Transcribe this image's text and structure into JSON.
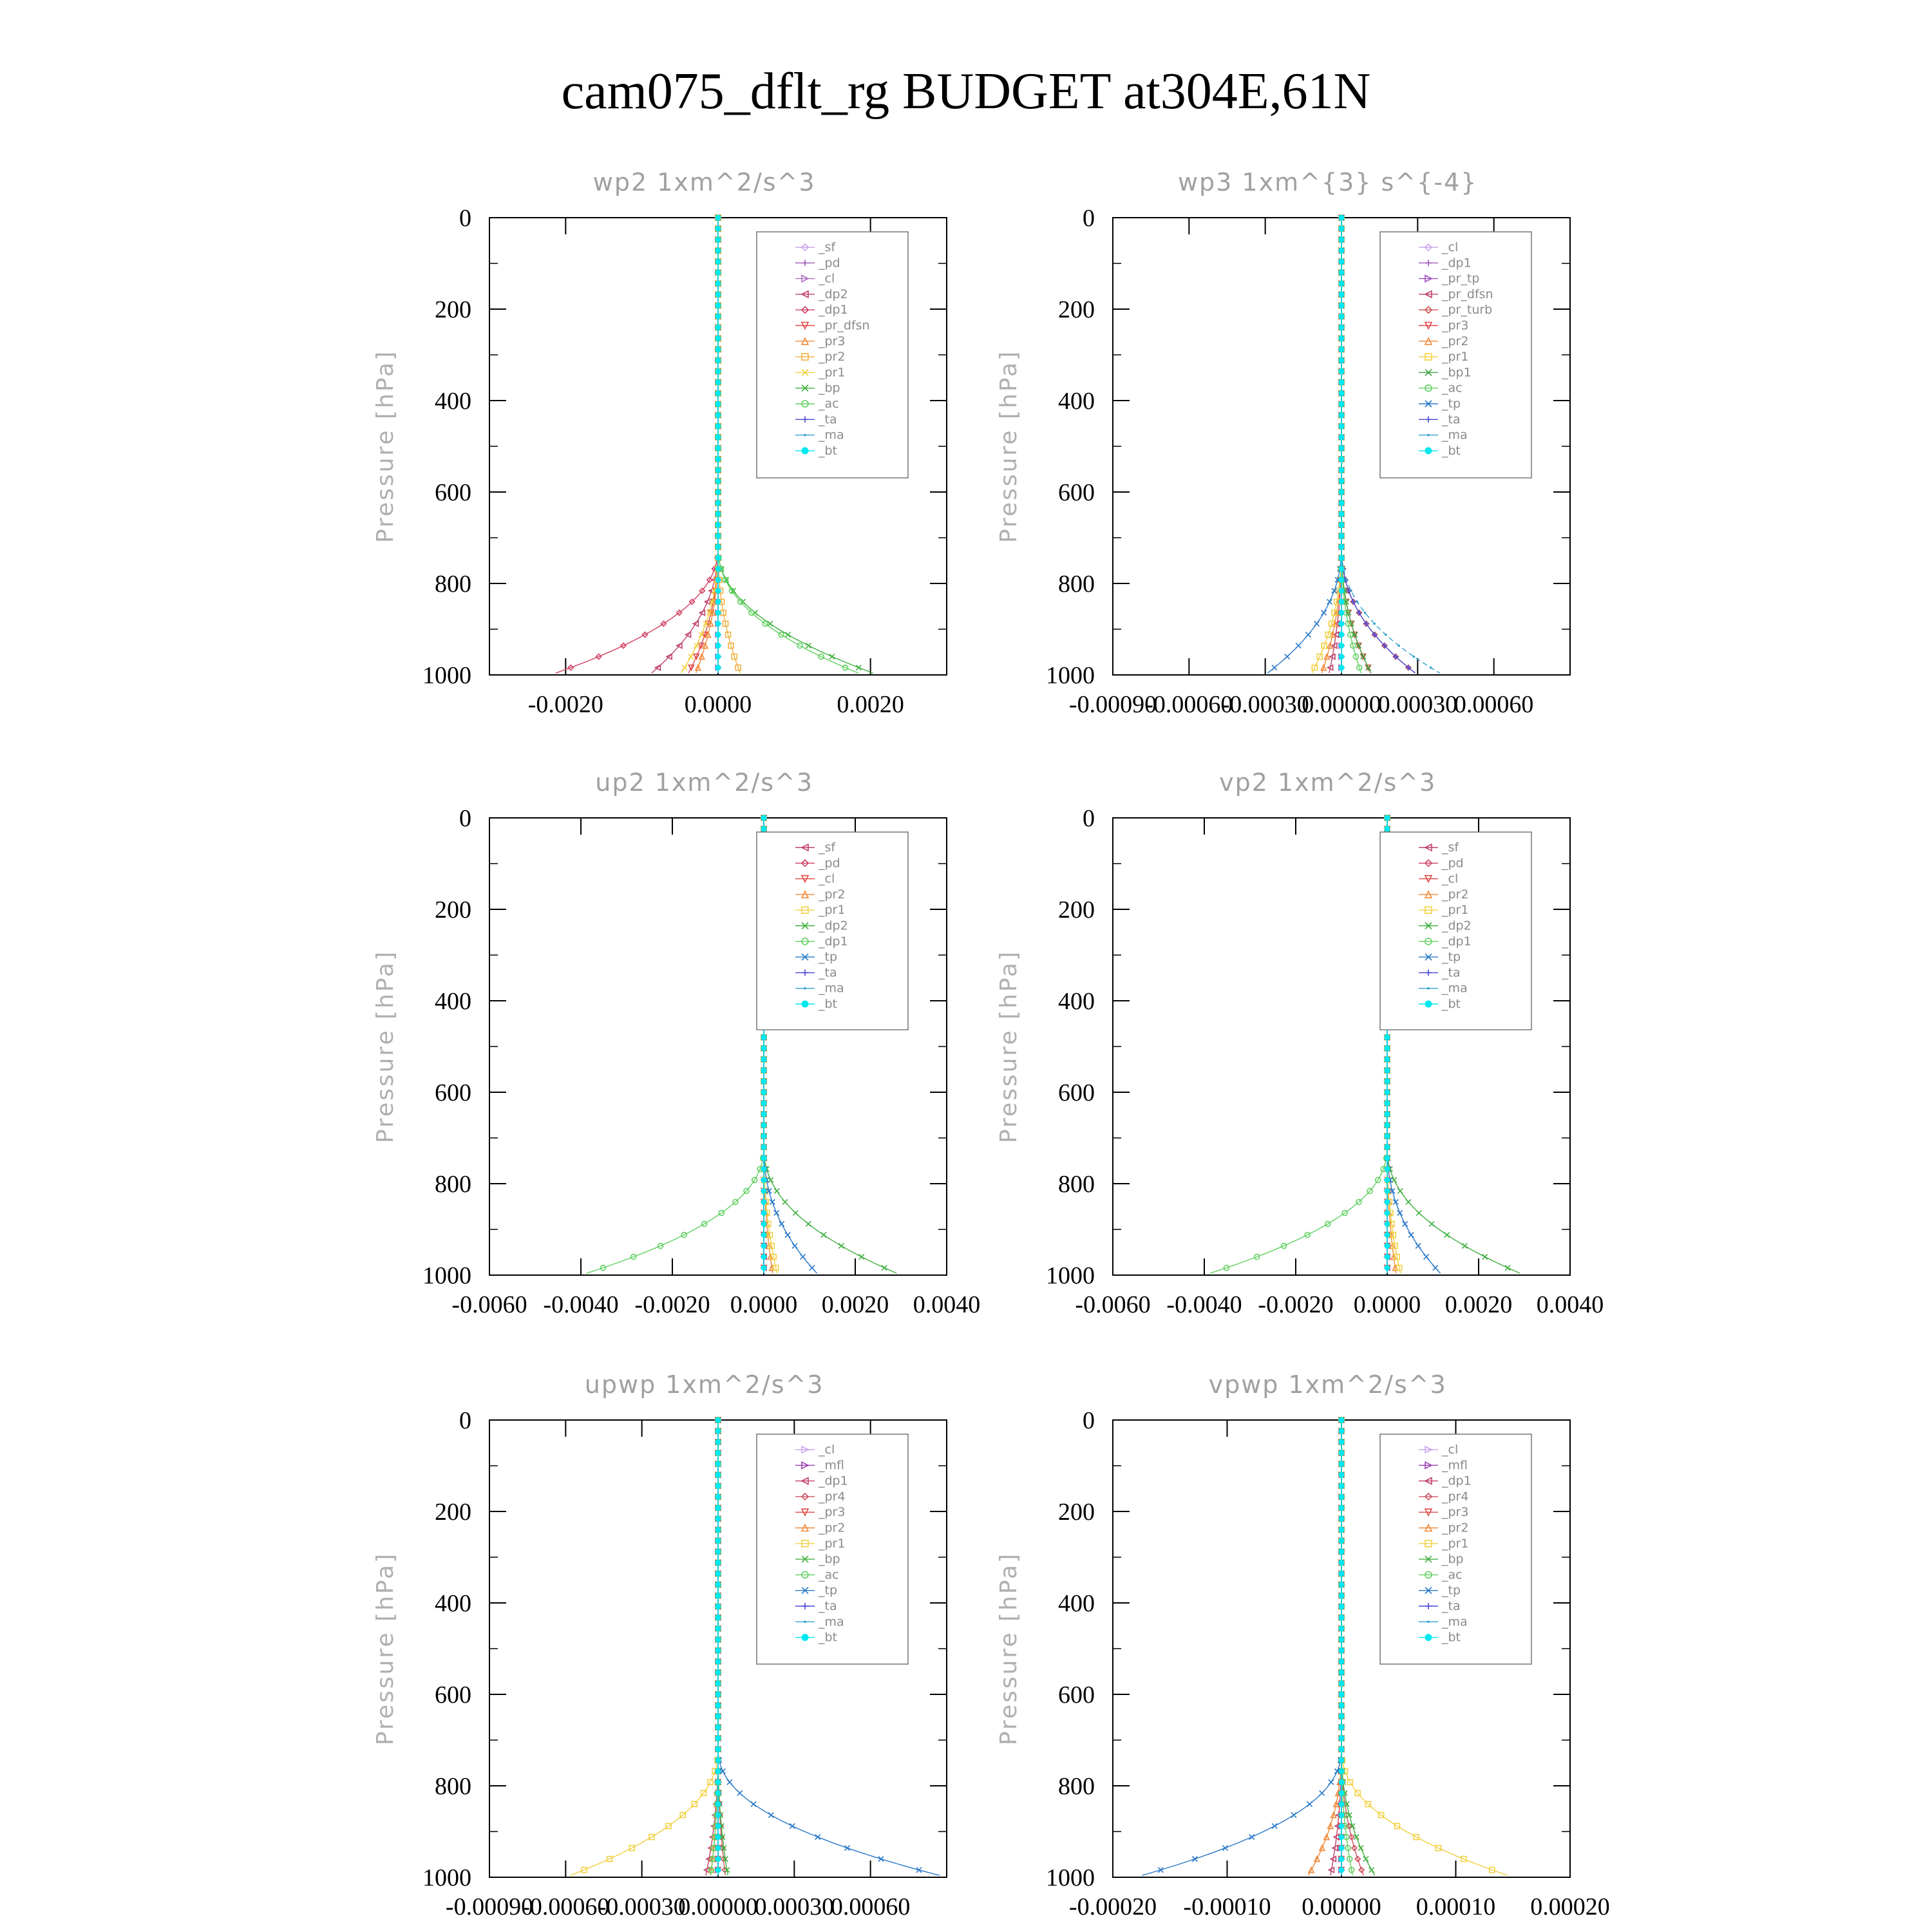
{
  "title": "cam075_dflt_rg  BUDGET at304E,61N",
  "colors": {
    "sf": "#c9a8e8",
    "pd": "#9b59b6",
    "cl": "#b070c0",
    "dp2": "#c0406a",
    "dp1": "#d04060",
    "pr_dfsn": "#e04848",
    "pr3": "#f08a3a",
    "pr2": "#f0b040",
    "pr1": "#f2d040",
    "bp": "#40b040",
    "ac": "#60d060",
    "ta": "#4848d8",
    "ma": "#30a0d0",
    "bt": "#00e8f0",
    "tp": "#2878c8",
    "pr_tp": "#a050c0",
    "pr_turb": "#d05050",
    "bp1": "#40a040",
    "mfl": "#9b40b0",
    "pr4": "#d05060"
  },
  "chart_data": [
    {
      "type": "line",
      "title": "wp2  1xm^2/s^3",
      "ylabel": "Pressure [hPa]",
      "xlim": [
        -0.003,
        0.003
      ],
      "ylim": [
        1000,
        0
      ],
      "xticks": [
        -0.002,
        0.0,
        0.002
      ],
      "xticklabels": [
        "-0.0020",
        "0.0000",
        "0.0020"
      ],
      "yticks": [
        0,
        200,
        400,
        600,
        800,
        1000
      ],
      "legend_loc": "top-right",
      "series": [
        {
          "name": "_sf",
          "key": "sf",
          "marker": "diamond",
          "amp": 0.0
        },
        {
          "name": "_pd",
          "key": "pd",
          "marker": "plus",
          "amp": 0.0
        },
        {
          "name": "_cl",
          "key": "cl",
          "marker": "tri-right",
          "amp": 0.0
        },
        {
          "name": "_dp2",
          "key": "dp2",
          "marker": "tri-left",
          "amp": -0.0009
        },
        {
          "name": "_dp1",
          "key": "dp1",
          "marker": "diamond",
          "amp": -0.0022
        },
        {
          "name": "_pr_dfsn",
          "key": "pr_dfsn",
          "marker": "tri-down",
          "amp": -0.0004
        },
        {
          "name": "_pr3",
          "key": "pr3",
          "marker": "tri-up",
          "amp": -0.0003
        },
        {
          "name": "_pr2",
          "key": "pr2",
          "marker": "square",
          "amp": 0.0003
        },
        {
          "name": "_pr1",
          "key": "pr1",
          "marker": "x",
          "amp": -0.0005
        },
        {
          "name": "_bp",
          "key": "bp",
          "marker": "x",
          "amp": 0.0021
        },
        {
          "name": "_ac",
          "key": "ac",
          "marker": "circle",
          "amp": 0.0019
        },
        {
          "name": "_ta",
          "key": "ta",
          "marker": "plus",
          "amp": 0.0
        },
        {
          "name": "_ma",
          "key": "ma",
          "marker": "dot",
          "amp": 0.0
        },
        {
          "name": "_bt",
          "key": "bt",
          "marker": "filled",
          "amp": 0.0
        }
      ]
    },
    {
      "type": "line",
      "title": "wp3  1xm^{3} s^{-4}",
      "ylabel": "Pressure [hPa]",
      "xlim": [
        -0.0009,
        0.0009
      ],
      "ylim": [
        1000,
        0
      ],
      "xticks": [
        -0.0009,
        -0.0006,
        -0.0003,
        0.0,
        0.0003,
        0.0006
      ],
      "xticklabels": [
        "-0.00090",
        "-0.00060",
        "-0.00030",
        "0.00000",
        "0.00030",
        "0.00060"
      ],
      "yticks": [
        0,
        200,
        400,
        600,
        800,
        1000
      ],
      "legend_loc": "top-right",
      "series": [
        {
          "name": "_cl",
          "key": "sf",
          "marker": "diamond",
          "amp": 0.0
        },
        {
          "name": "_dp1",
          "key": "pd",
          "marker": "plus",
          "amp": 0.0
        },
        {
          "name": "_pr_tp",
          "key": "pr_tp",
          "marker": "tri-right",
          "amp": 0.0
        },
        {
          "name": "_pr_dfsn",
          "key": "dp2",
          "marker": "tri-left",
          "amp": -5e-05
        },
        {
          "name": "_pr_turb",
          "key": "pr_turb",
          "marker": "diamond",
          "amp": 0.0003
        },
        {
          "name": "_pr3",
          "key": "pr_dfsn",
          "marker": "tri-down",
          "amp": 0.00012
        },
        {
          "name": "_pr2",
          "key": "pr3",
          "marker": "tri-up",
          "amp": -8e-05
        },
        {
          "name": "_pr1",
          "key": "pr1",
          "marker": "square",
          "amp": -0.00012
        },
        {
          "name": "_bp1",
          "key": "bp1",
          "marker": "x",
          "amp": 0.00012
        },
        {
          "name": "_ac",
          "key": "ac",
          "marker": "circle",
          "amp": 8e-05
        },
        {
          "name": "_tp",
          "key": "tp",
          "marker": "x",
          "amp": -0.0003
        },
        {
          "name": "_ta",
          "key": "ta",
          "marker": "plus",
          "amp": 0.0003
        },
        {
          "name": "_ma",
          "key": "ma",
          "marker": "dot",
          "amp": 0.0004
        },
        {
          "name": "_bt",
          "key": "bt",
          "marker": "filled",
          "amp": 0.0
        }
      ]
    },
    {
      "type": "line",
      "title": "up2  1xm^2/s^3",
      "ylabel": "Pressure [hPa]",
      "xlim": [
        -0.006,
        0.004
      ],
      "ylim": [
        1000,
        0
      ],
      "xticks": [
        -0.006,
        -0.004,
        -0.002,
        0.0,
        0.002,
        0.004
      ],
      "xticklabels": [
        "-0.0060",
        "-0.0040",
        "-0.0020",
        "0.0000",
        "0.0020",
        "0.0040"
      ],
      "yticks": [
        0,
        200,
        400,
        600,
        800,
        1000
      ],
      "legend_loc": "top-right",
      "series": [
        {
          "name": "_sf",
          "key": "dp2",
          "marker": "tri-left",
          "amp": 0.0
        },
        {
          "name": "_pd",
          "key": "dp1",
          "marker": "diamond",
          "amp": 0.0
        },
        {
          "name": "_cl",
          "key": "pr_dfsn",
          "marker": "tri-down",
          "amp": 0.0
        },
        {
          "name": "_pr2",
          "key": "pr3",
          "marker": "tri-up",
          "amp": 0.0002
        },
        {
          "name": "_pr1",
          "key": "pr1",
          "marker": "square",
          "amp": 0.0003
        },
        {
          "name": "_dp2",
          "key": "bp",
          "marker": "x",
          "amp": 0.003
        },
        {
          "name": "_dp1",
          "key": "ac",
          "marker": "circle",
          "amp": -0.004
        },
        {
          "name": "_tp",
          "key": "tp",
          "marker": "x",
          "amp": 0.0012
        },
        {
          "name": "_ta",
          "key": "ta",
          "marker": "plus",
          "amp": 0.0
        },
        {
          "name": "_ma",
          "key": "ma",
          "marker": "dot",
          "amp": 0.0
        },
        {
          "name": "_bt",
          "key": "bt",
          "marker": "filled",
          "amp": 0.0
        }
      ]
    },
    {
      "type": "line",
      "title": "vp2  1xm^2/s^3",
      "ylabel": "Pressure [hPa]",
      "xlim": [
        -0.006,
        0.004
      ],
      "ylim": [
        1000,
        0
      ],
      "xticks": [
        -0.006,
        -0.004,
        -0.002,
        0.0,
        0.002,
        0.004
      ],
      "xticklabels": [
        "-0.0060",
        "-0.0040",
        "-0.0020",
        "0.0000",
        "0.0020",
        "0.0040"
      ],
      "yticks": [
        0,
        200,
        400,
        600,
        800,
        1000
      ],
      "legend_loc": "top-right",
      "series": [
        {
          "name": "_sf",
          "key": "dp2",
          "marker": "tri-left",
          "amp": 0.0
        },
        {
          "name": "_pd",
          "key": "dp1",
          "marker": "diamond",
          "amp": 0.0
        },
        {
          "name": "_cl",
          "key": "pr_dfsn",
          "marker": "tri-down",
          "amp": 0.0
        },
        {
          "name": "_pr2",
          "key": "pr3",
          "marker": "tri-up",
          "amp": 0.0002
        },
        {
          "name": "_pr1",
          "key": "pr1",
          "marker": "square",
          "amp": 0.0003
        },
        {
          "name": "_dp2",
          "key": "bp",
          "marker": "x",
          "amp": 0.003
        },
        {
          "name": "_dp1",
          "key": "ac",
          "marker": "circle",
          "amp": -0.004
        },
        {
          "name": "_tp",
          "key": "tp",
          "marker": "x",
          "amp": 0.0012
        },
        {
          "name": "_ta",
          "key": "ta",
          "marker": "plus",
          "amp": 0.0
        },
        {
          "name": "_ma",
          "key": "ma",
          "marker": "dot",
          "amp": 0.0
        },
        {
          "name": "_bt",
          "key": "bt",
          "marker": "filled",
          "amp": 0.0
        }
      ]
    },
    {
      "type": "line",
      "title": "upwp  1xm^2/s^3",
      "ylabel": "Pressure [hPa]",
      "xlim": [
        -0.0009,
        0.0009
      ],
      "ylim": [
        1000,
        0
      ],
      "xticks": [
        -0.0009,
        -0.0006,
        -0.0003,
        0.0,
        0.0003,
        0.0006
      ],
      "xticklabels": [
        "-0.00090",
        "-0.00060",
        "-0.00030",
        "0.00000",
        "0.00030",
        "0.00060"
      ],
      "yticks": [
        0,
        200,
        400,
        600,
        800,
        1000
      ],
      "legend_loc": "top-right",
      "series": [
        {
          "name": "_cl",
          "key": "sf",
          "marker": "tri-right",
          "amp": 0.0
        },
        {
          "name": "_mfl",
          "key": "mfl",
          "marker": "tri-right",
          "amp": 0.0
        },
        {
          "name": "_dp1",
          "key": "dp2",
          "marker": "tri-left",
          "amp": -5e-05
        },
        {
          "name": "_pr4",
          "key": "pr4",
          "marker": "diamond",
          "amp": 3e-05
        },
        {
          "name": "_pr3",
          "key": "pr_dfsn",
          "marker": "tri-down",
          "amp": 0.0
        },
        {
          "name": "_pr2",
          "key": "pr3",
          "marker": "tri-up",
          "amp": -3e-05
        },
        {
          "name": "_pr1",
          "key": "pr1",
          "marker": "square",
          "amp": -0.0006
        },
        {
          "name": "_bp",
          "key": "bp",
          "marker": "x",
          "amp": 4e-05
        },
        {
          "name": "_ac",
          "key": "ac",
          "marker": "circle",
          "amp": -3e-05
        },
        {
          "name": "_tp",
          "key": "tp",
          "marker": "x",
          "amp": 0.0009
        },
        {
          "name": "_ta",
          "key": "ta",
          "marker": "plus",
          "amp": 0.0
        },
        {
          "name": "_ma",
          "key": "ma",
          "marker": "dot",
          "amp": 0.0
        },
        {
          "name": "_bt",
          "key": "bt",
          "marker": "filled",
          "amp": 0.0
        }
      ]
    },
    {
      "type": "line",
      "title": "vpwp  1xm^2/s^3",
      "ylabel": "Pressure [hPa]",
      "xlim": [
        -0.0002,
        0.0002
      ],
      "ylim": [
        1000,
        0
      ],
      "xticks": [
        -0.0002,
        -0.0001,
        0.0,
        0.0001,
        0.0002
      ],
      "xticklabels": [
        "-0.00020",
        "-0.00010",
        "0.00000",
        "0.00010",
        "0.00020"
      ],
      "yticks": [
        0,
        200,
        400,
        600,
        800,
        1000
      ],
      "legend_loc": "top-right",
      "series": [
        {
          "name": "_cl",
          "key": "sf",
          "marker": "tri-right",
          "amp": 0.0
        },
        {
          "name": "_mfl",
          "key": "mfl",
          "marker": "tri-right",
          "amp": 0.0
        },
        {
          "name": "_dp1",
          "key": "dp2",
          "marker": "tri-left",
          "amp": -1e-05
        },
        {
          "name": "_pr4",
          "key": "pr4",
          "marker": "diamond",
          "amp": 2e-05
        },
        {
          "name": "_pr3",
          "key": "pr_dfsn",
          "marker": "tri-down",
          "amp": 0.0
        },
        {
          "name": "_pr2",
          "key": "pr3",
          "marker": "tri-up",
          "amp": -3e-05
        },
        {
          "name": "_pr1",
          "key": "pr1",
          "marker": "square",
          "amp": 0.00015
        },
        {
          "name": "_bp",
          "key": "bp",
          "marker": "x",
          "amp": 3e-05
        },
        {
          "name": "_ac",
          "key": "ac",
          "marker": "circle",
          "amp": 1e-05
        },
        {
          "name": "_tp",
          "key": "tp",
          "marker": "x",
          "amp": -0.00018
        },
        {
          "name": "_ta",
          "key": "ta",
          "marker": "plus",
          "amp": 0.0
        },
        {
          "name": "_ma",
          "key": "ma",
          "marker": "dot",
          "amp": 0.0
        },
        {
          "name": "_bt",
          "key": "bt",
          "marker": "filled",
          "amp": 0.0
        }
      ]
    }
  ]
}
